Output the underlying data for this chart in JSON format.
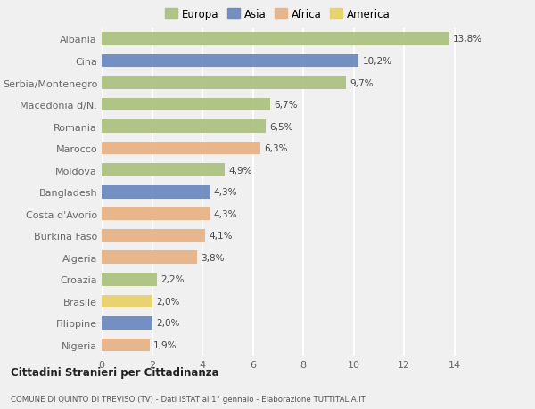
{
  "categories": [
    "Albania",
    "Cina",
    "Serbia/Montenegro",
    "Macedonia d/N.",
    "Romania",
    "Marocco",
    "Moldova",
    "Bangladesh",
    "Costa d'Avorio",
    "Burkina Faso",
    "Algeria",
    "Croazia",
    "Brasile",
    "Filippine",
    "Nigeria"
  ],
  "values": [
    13.8,
    10.2,
    9.7,
    6.7,
    6.5,
    6.3,
    4.9,
    4.3,
    4.3,
    4.1,
    3.8,
    2.2,
    2.0,
    2.0,
    1.9
  ],
  "labels": [
    "13,8%",
    "10,2%",
    "9,7%",
    "6,7%",
    "6,5%",
    "6,3%",
    "4,9%",
    "4,3%",
    "4,3%",
    "4,1%",
    "3,8%",
    "2,2%",
    "2,0%",
    "2,0%",
    "1,9%"
  ],
  "continents": [
    "Europa",
    "Asia",
    "Europa",
    "Europa",
    "Europa",
    "Africa",
    "Europa",
    "Asia",
    "Africa",
    "Africa",
    "Africa",
    "Europa",
    "America",
    "Asia",
    "Africa"
  ],
  "continent_colors": {
    "Europa": "#a8c07a",
    "Asia": "#6685c0",
    "Africa": "#e8b080",
    "America": "#e8d060"
  },
  "legend_order": [
    "Europa",
    "Asia",
    "Africa",
    "America"
  ],
  "title1": "Cittadini Stranieri per Cittadinanza",
  "title2": "COMUNE DI QUINTO DI TREVISO (TV) - Dati ISTAT al 1° gennaio - Elaborazione TUTTITALIA.IT",
  "xlim": [
    0,
    15.5
  ],
  "xticks": [
    0,
    2,
    4,
    6,
    8,
    10,
    12,
    14
  ],
  "bg_color": "#f0f0f0",
  "grid_color": "#ffffff"
}
